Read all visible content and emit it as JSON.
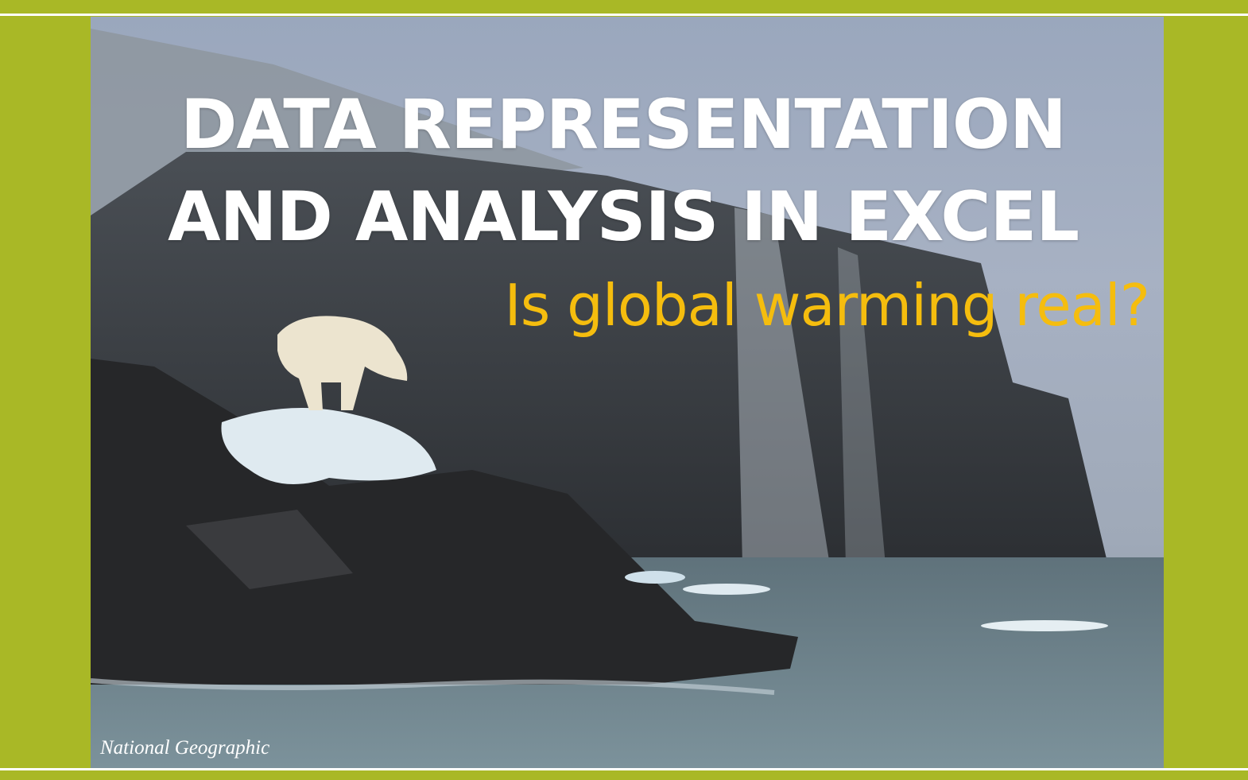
{
  "slide": {
    "title_line1": "DATA REPRESENTATION",
    "title_line2": "AND ANALYSIS IN EXCEL",
    "subtitle": "Is global warming real?",
    "photo_credit": "National Geographic"
  },
  "colors": {
    "border": "#a9b826",
    "title": "#ffffff",
    "subtitle": "#f5bd0e"
  }
}
